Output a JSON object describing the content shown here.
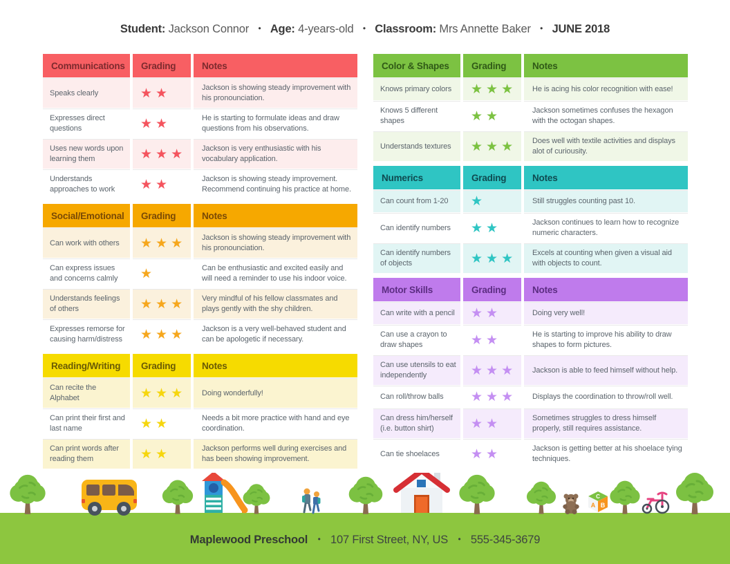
{
  "header": {
    "student_label": "Student:",
    "student_value": "Jackson Connor",
    "age_label": "Age:",
    "age_value": "4-years-old",
    "classroom_label": "Classroom:",
    "classroom_value": "Mrs Annette Baker",
    "date": "JUNE 2018",
    "separator": "•"
  },
  "tables": [
    {
      "id": "communications",
      "column": "left",
      "title": "Communications",
      "grading_label": "Grading",
      "notes_label": "Notes",
      "colors": {
        "header_bg": "#f85f63",
        "header_text": "#7d2a2e",
        "row_tint": "#fdeded",
        "star": "#f4545e"
      },
      "rows": [
        {
          "skill": "Speaks clearly",
          "stars": 2,
          "note": "Jackson is showing steady improvement with his pronounciation."
        },
        {
          "skill": "Expresses direct questions",
          "stars": 2,
          "note": "He is starting to formulate ideas and draw questions from his observations."
        },
        {
          "skill": "Uses new words upon learning them",
          "stars": 3,
          "note": "Jackson is very enthusiastic with his vocabulary application."
        },
        {
          "skill": "Understands approaches to work",
          "stars": 2,
          "note": "Jackson is showing steady improvement. Recommend continuing his practice at home."
        }
      ]
    },
    {
      "id": "social-emotional",
      "column": "left",
      "title": "Social/Emotional",
      "grading_label": "Grading",
      "notes_label": "Notes",
      "colors": {
        "header_bg": "#f6a800",
        "header_text": "#7a4a05",
        "row_tint": "#fbf1dd",
        "star": "#f6a71d"
      },
      "rows": [
        {
          "skill": "Can work with others",
          "stars": 3,
          "note": "Jackson is showing steady improvement with his pronounciation."
        },
        {
          "skill": "Can express issues and concerns calmly",
          "stars": 1,
          "note": "Can be enthusiastic and excited easily and will need a reminder to use his indoor voice."
        },
        {
          "skill": "Understands feelings of others",
          "stars": 3,
          "note": "Very mindful of his fellow classmates and plays gently with the shy children."
        },
        {
          "skill": "Expresses remorse for causing harm/distress",
          "stars": 3,
          "note": "Jackson is a very well-behaved student and can be apologetic if necessary."
        }
      ]
    },
    {
      "id": "reading-writing",
      "column": "left",
      "title": "Reading/Writing",
      "grading_label": "Grading",
      "notes_label": "Notes",
      "colors": {
        "header_bg": "#f6db00",
        "header_text": "#6a5b04",
        "row_tint": "#fbf4d0",
        "star": "#f6d60e"
      },
      "rows": [
        {
          "skill": "Can recite the Alphabet",
          "stars": 3,
          "note": "Doing wonderfully!"
        },
        {
          "skill": "Can print their first and last name",
          "stars": 2,
          "note": "Needs a bit more practice with hand and eye coordination."
        },
        {
          "skill": "Can print words after reading them",
          "stars": 2,
          "note": "Jackson performs well during exercises and has been showing improvement."
        }
      ]
    },
    {
      "id": "color-shapes",
      "column": "right",
      "title": "Color & Shapes",
      "grading_label": "Grading",
      "notes_label": "Notes",
      "colors": {
        "header_bg": "#7cc242",
        "header_text": "#305a17",
        "row_tint": "#f0f7e7",
        "star": "#7cc242"
      },
      "rows": [
        {
          "skill": "Knows primary colors",
          "stars": 3,
          "note": "He is acing his color recognition with ease!"
        },
        {
          "skill": "Knows 5 different shapes",
          "stars": 2,
          "note": "Jackson sometimes confuses the hexagon with the octogan shapes."
        },
        {
          "skill": "Understands textures",
          "stars": 3,
          "note": "Does well with textile activities and displays alot of curiousity."
        }
      ]
    },
    {
      "id": "numerics",
      "column": "right",
      "title": "Numerics",
      "grading_label": "Grading",
      "notes_label": "Notes",
      "colors": {
        "header_bg": "#2fc5c3",
        "header_text": "#0f4a50",
        "row_tint": "#e1f5f4",
        "star": "#2fc5c3"
      },
      "rows": [
        {
          "skill": "Can count from 1-20",
          "stars": 1,
          "note": "Still struggles counting past 10."
        },
        {
          "skill": "Can identify numbers",
          "stars": 2,
          "note": "Jackson continues to learn how to recognize numeric characters."
        },
        {
          "skill": "Can identify numbers of objects",
          "stars": 3,
          "note": "Excels at counting when given a visual aid with objects to count."
        }
      ]
    },
    {
      "id": "motor-skills",
      "column": "right",
      "title": "Motor Skills",
      "grading_label": "Grading",
      "notes_label": "Notes",
      "colors": {
        "header_bg": "#bf7bec",
        "header_text": "#5c2d82",
        "row_tint": "#f5ebfc",
        "star": "#c48ff2"
      },
      "rows": [
        {
          "skill": "Can write with a pencil",
          "stars": 2,
          "note": "Doing very well!"
        },
        {
          "skill": "Can use a crayon to draw shapes",
          "stars": 2,
          "note": "He is starting to improve his ability to draw shapes to form pictures."
        },
        {
          "skill": "Can use utensils to eat independently",
          "stars": 3,
          "note": "Jackson is able to feed himself without help."
        },
        {
          "skill": "Can roll/throw balls",
          "stars": 3,
          "note": "Displays the coordination to throw/roll well."
        },
        {
          "skill": "Can dress him/herself (i.e. button shirt)",
          "stars": 2,
          "note": "Sometimes struggles to dress himself properly, still requires assistance."
        },
        {
          "skill": "Can tie shoelaces",
          "stars": 2,
          "note": "Jackson is getting better at his shoelace tying techniques."
        }
      ]
    }
  ],
  "footer": {
    "school": "Maplewood Preschool",
    "address": "107 First Street, NY, US",
    "phone": "555-345-3679",
    "separator": "•",
    "band_color": "#8dc63f"
  },
  "illustration": {
    "items": [
      "tree",
      "school-bus",
      "tree",
      "playground-slide",
      "tree",
      "children-walking",
      "tree",
      "house",
      "tree",
      "tree",
      "teddy-bear",
      "abc-blocks",
      "tree",
      "tricycle",
      "tree"
    ]
  }
}
